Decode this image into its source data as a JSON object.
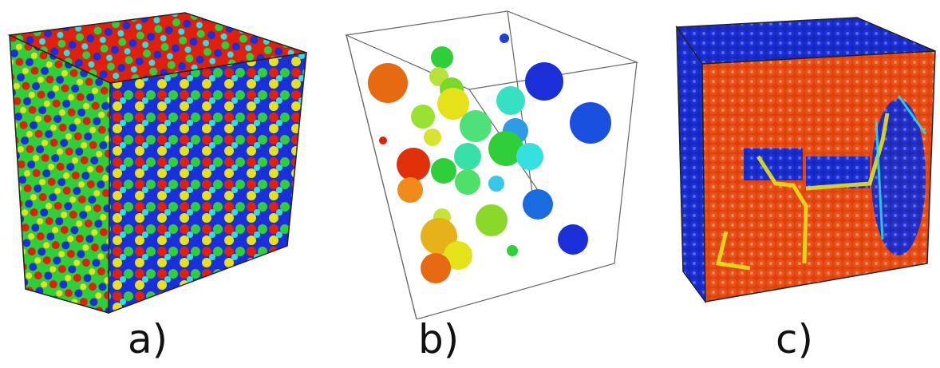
{
  "panels": [
    {
      "label": "a)"
    },
    {
      "label": "b)"
    },
    {
      "label": "c)"
    }
  ],
  "colors": {
    "red": "#e0200a",
    "orange": "#f08a1a",
    "yellow": "#e6e21a",
    "green": "#2fcf3a",
    "cyan": "#2fe0e0",
    "blue": "#1a2fd8",
    "edge": "#333333"
  }
}
